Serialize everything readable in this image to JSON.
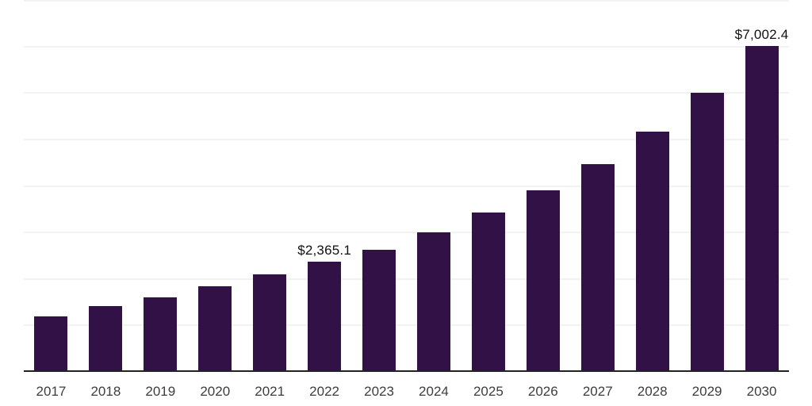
{
  "chart_data": {
    "type": "bar",
    "title": "",
    "xlabel": "",
    "ylabel": "",
    "categories": [
      "2017",
      "2018",
      "2019",
      "2020",
      "2021",
      "2022",
      "2023",
      "2024",
      "2025",
      "2026",
      "2027",
      "2028",
      "2029",
      "2030"
    ],
    "values": [
      1195,
      1415,
      1605,
      1840,
      2100,
      2365.1,
      2635,
      3000,
      3430,
      3905,
      4470,
      5170,
      6000,
      7002.4
    ],
    "labeled_points": [
      {
        "category": "2022",
        "label": "$2,365.1"
      },
      {
        "category": "2030",
        "label": "$7,002.4"
      }
    ],
    "ylim": [
      0,
      8000
    ],
    "gridline_step": 1000,
    "grid": "horizontal",
    "y_axis_labels_visible": false,
    "legend_position": "none"
  },
  "style": {
    "bar_color": "#321246",
    "axis_line_color": "#222222",
    "gridline_color": "#f1f2f4",
    "data_label_color": "#101010",
    "tick_label_color": "#3d3d3d",
    "background": "#ffffff"
  }
}
